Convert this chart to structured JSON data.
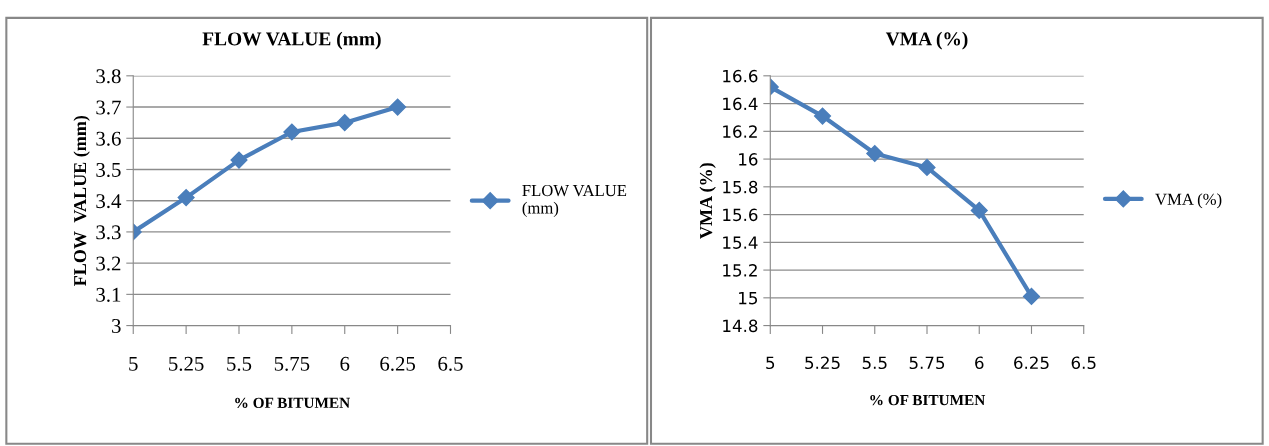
{
  "chart_data": [
    {
      "type": "line",
      "title": "FLOW VALUE (mm)",
      "xlabel": "% OF BITUMEN",
      "ylabel": "FLOW  VALUE (mm)",
      "x": [
        5,
        5.25,
        5.5,
        5.75,
        6,
        6.25
      ],
      "xlim": [
        5,
        6.5
      ],
      "xticks": [
        5,
        5.25,
        5.5,
        5.75,
        6,
        6.25,
        6.5
      ],
      "ylim": [
        3,
        3.8
      ],
      "yticks": [
        3,
        3.1,
        3.2,
        3.3,
        3.4,
        3.5,
        3.6,
        3.7,
        3.8
      ],
      "grid": "y",
      "legend": "right",
      "marker": "diamond",
      "line_style": "solid",
      "series": [
        {
          "name": "FLOW VALUE\n(mm)",
          "color": "#4a7ebb",
          "values": [
            3.3,
            3.41,
            3.53,
            3.62,
            3.65,
            3.7
          ]
        }
      ]
    },
    {
      "type": "line",
      "title": "VMA (%)",
      "xlabel": "% OF BITUMEN",
      "ylabel": "VMA (%)",
      "x": [
        5,
        5.25,
        5.5,
        5.75,
        6,
        6.25
      ],
      "xlim": [
        5,
        6.5
      ],
      "xticks": [
        5,
        5.25,
        5.5,
        5.75,
        6,
        6.25,
        6.5
      ],
      "ylim": [
        14.8,
        16.6
      ],
      "yticks": [
        14.8,
        15,
        15.2,
        15.4,
        15.6,
        15.8,
        16,
        16.2,
        16.4,
        16.6
      ],
      "grid": "y",
      "legend": "right",
      "marker": "diamond",
      "line_style": "solid",
      "series": [
        {
          "name": "VMA (%)",
          "color": "#4a7ebb",
          "values": [
            16.52,
            16.31,
            16.04,
            15.94,
            15.63,
            15.01
          ]
        }
      ]
    }
  ]
}
